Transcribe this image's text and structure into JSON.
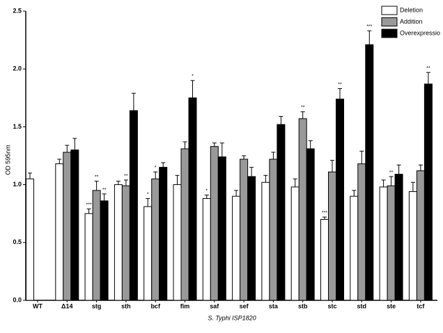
{
  "chart_data": {
    "type": "bar",
    "ylabel": "OD 595nm",
    "xlabel": "S. Typhi ISP1820",
    "categories": [
      "WT",
      "Δ14",
      "stg",
      "sth",
      "bcf",
      "fim",
      "saf",
      "sef",
      "sta",
      "stb",
      "stc",
      "std",
      "ste",
      "tcf"
    ],
    "series": [
      {
        "name": "Deletion",
        "color": "#ffffff",
        "values": [
          1.05,
          1.18,
          0.75,
          1.0,
          0.81,
          1.0,
          0.88,
          0.9,
          1.02,
          0.98,
          0.7,
          0.9,
          0.98,
          0.94
        ],
        "errors": [
          0.05,
          0.04,
          0.04,
          0.03,
          0.07,
          0.08,
          0.03,
          0.05,
          0.06,
          0.07,
          0.02,
          0.05,
          0.06,
          0.08
        ],
        "annotations": [
          null,
          null,
          "***",
          null,
          "*",
          null,
          "*",
          null,
          null,
          null,
          "***",
          null,
          null,
          null
        ]
      },
      {
        "name": "Addition",
        "color": "#999999",
        "values": [
          null,
          1.28,
          0.95,
          0.99,
          1.05,
          1.31,
          1.33,
          1.22,
          1.22,
          1.57,
          1.11,
          1.18,
          0.99,
          1.12
        ],
        "errors": [
          null,
          0.06,
          0.08,
          0.05,
          0.06,
          0.06,
          0.03,
          0.03,
          0.06,
          0.06,
          0.1,
          0.11,
          0.08,
          0.05
        ],
        "annotations": [
          null,
          null,
          "**",
          "**",
          "*",
          null,
          null,
          null,
          null,
          "**",
          null,
          null,
          "**",
          null
        ]
      },
      {
        "name": "Overexpressio",
        "color": "#000000",
        "values": [
          null,
          1.3,
          0.86,
          1.64,
          1.15,
          1.75,
          1.24,
          1.07,
          1.52,
          1.31,
          1.74,
          2.21,
          1.09,
          1.87
        ],
        "errors": [
          null,
          0.1,
          0.06,
          0.15,
          0.04,
          0.15,
          0.12,
          0.08,
          0.07,
          0.07,
          0.09,
          0.12,
          0.08,
          0.1
        ],
        "annotations": [
          null,
          null,
          "**",
          null,
          null,
          "*",
          null,
          null,
          null,
          null,
          "**",
          "***",
          null,
          "**"
        ]
      }
    ],
    "ylim": [
      0,
      2.5
    ],
    "yticks": [
      {
        "value": 0,
        "label": "0.0"
      },
      0.5,
      {
        "value": 1,
        "label": "1.0"
      },
      1.5,
      {
        "value": 2,
        "label": "2.0"
      },
      2.5
    ],
    "legend": "upper right"
  }
}
